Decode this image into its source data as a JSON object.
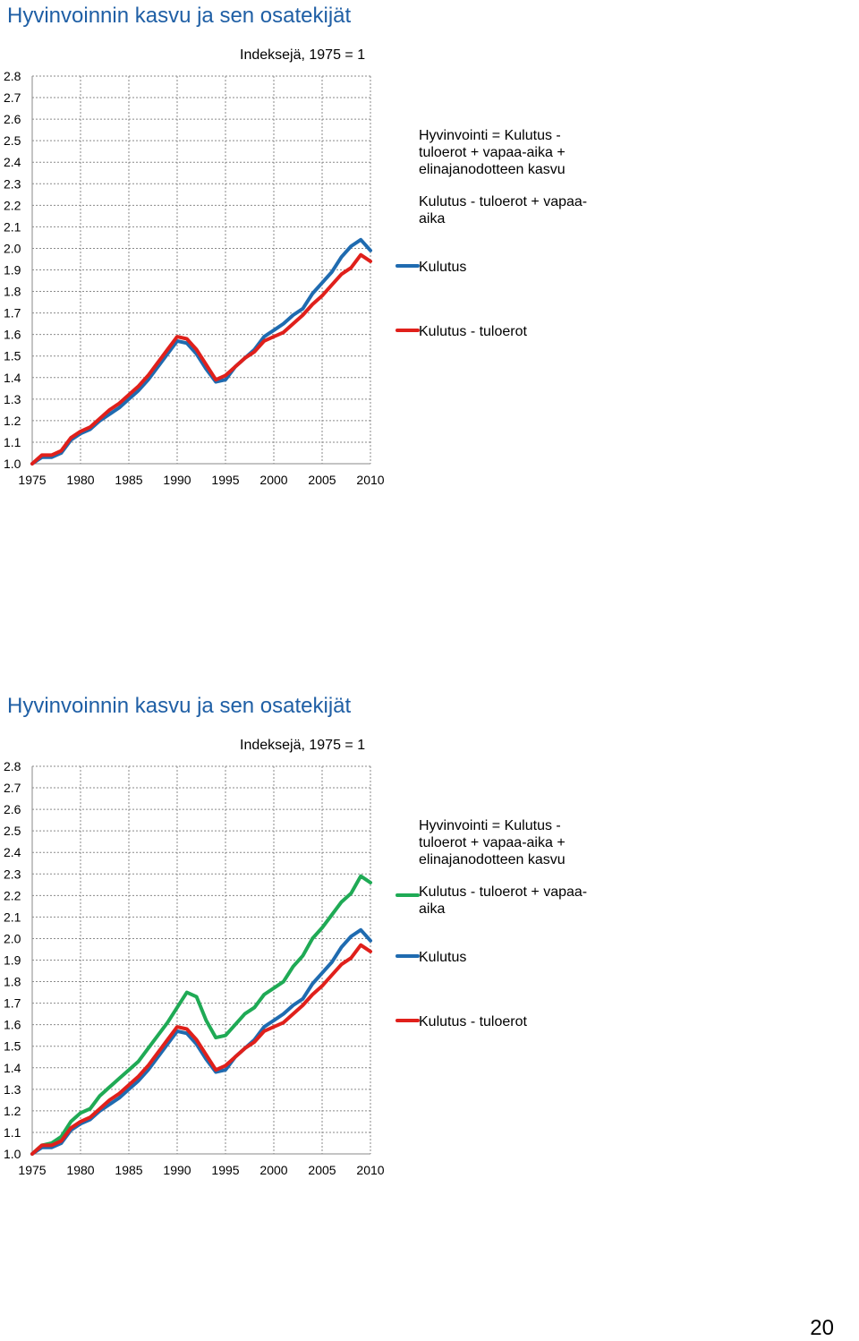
{
  "chart_data": [
    {
      "type": "line",
      "title": "Hyvinvoinnin kasvu ja sen osatekijät",
      "subtitle": "Indeksejä, 1975 = 1",
      "xlabel": "",
      "ylabel": "",
      "xlim": [
        1975,
        2010
      ],
      "ylim": [
        1.0,
        2.8
      ],
      "x_ticks": [
        "1975",
        "1980",
        "1985",
        "1990",
        "1995",
        "2000",
        "2005",
        "2010"
      ],
      "y_ticks": [
        "2.8",
        "2.7",
        "2.6",
        "2.5",
        "2.4",
        "2.3",
        "2.2",
        "2.1",
        "2.0",
        "1.9",
        "1.8",
        "1.7",
        "1.6",
        "1.5",
        "1.4",
        "1.3",
        "1.2",
        "1.1",
        "1.0"
      ],
      "grid": true,
      "x": [
        1975,
        1976,
        1977,
        1978,
        1979,
        1980,
        1981,
        1982,
        1983,
        1984,
        1985,
        1986,
        1987,
        1988,
        1989,
        1990,
        1991,
        1992,
        1993,
        1994,
        1995,
        1996,
        1997,
        1998,
        1999,
        2000,
        2001,
        2002,
        2003,
        2004,
        2005,
        2006,
        2007,
        2008,
        2009,
        2010
      ],
      "legend": [
        {
          "label": "Hyvinvointi = Kulutus - tuloerot + vapaa-aika + elinajanodotteen kasvu",
          "color": "",
          "marker": false
        },
        {
          "label": "Kulutus - tuloerot + vapaa-aika",
          "color": "",
          "marker": false
        },
        {
          "label": "Kulutus",
          "color": "#1f6bb0",
          "marker": true
        },
        {
          "label": "Kulutus - tuloerot",
          "color": "#e0201b",
          "marker": true
        }
      ],
      "series": [
        {
          "color": "#1f6bb0",
          "values": [
            1.0,
            1.03,
            1.03,
            1.05,
            1.11,
            1.14,
            1.16,
            1.2,
            1.23,
            1.26,
            1.3,
            1.34,
            1.39,
            1.45,
            1.51,
            1.57,
            1.56,
            1.51,
            1.44,
            1.38,
            1.39,
            1.45,
            1.49,
            1.53,
            1.59,
            1.62,
            1.65,
            1.69,
            1.72,
            1.79,
            1.84,
            1.89,
            1.96,
            2.01,
            2.04,
            1.99
          ]
        },
        {
          "color": "#e0201b",
          "values": [
            1.0,
            1.04,
            1.04,
            1.06,
            1.12,
            1.15,
            1.17,
            1.21,
            1.25,
            1.28,
            1.32,
            1.36,
            1.41,
            1.47,
            1.53,
            1.59,
            1.58,
            1.53,
            1.46,
            1.39,
            1.41,
            1.45,
            1.49,
            1.52,
            1.57,
            1.59,
            1.61,
            1.65,
            1.69,
            1.74,
            1.78,
            1.83,
            1.88,
            1.91,
            1.97,
            1.94
          ]
        }
      ]
    },
    {
      "type": "line",
      "title": "Hyvinvoinnin kasvu ja sen osatekijät",
      "subtitle": "Indeksejä, 1975 = 1",
      "xlabel": "",
      "ylabel": "",
      "xlim": [
        1975,
        2010
      ],
      "ylim": [
        1.0,
        2.8
      ],
      "x_ticks": [
        "1975",
        "1980",
        "1985",
        "1990",
        "1995",
        "2000",
        "2005",
        "2010"
      ],
      "y_ticks": [
        "2.8",
        "2.7",
        "2.6",
        "2.5",
        "2.4",
        "2.3",
        "2.2",
        "2.1",
        "2.0",
        "1.9",
        "1.8",
        "1.7",
        "1.6",
        "1.5",
        "1.4",
        "1.3",
        "1.2",
        "1.1",
        "1.0"
      ],
      "grid": true,
      "x": [
        1975,
        1976,
        1977,
        1978,
        1979,
        1980,
        1981,
        1982,
        1983,
        1984,
        1985,
        1986,
        1987,
        1988,
        1989,
        1990,
        1991,
        1992,
        1993,
        1994,
        1995,
        1996,
        1997,
        1998,
        1999,
        2000,
        2001,
        2002,
        2003,
        2004,
        2005,
        2006,
        2007,
        2008,
        2009,
        2010
      ],
      "legend": [
        {
          "label": "Hyvinvointi = Kulutus - tuloerot + vapaa-aika + elinajanodotteen kasvu",
          "color": "",
          "marker": false
        },
        {
          "label": "Kulutus - tuloerot + vapaa-aika",
          "color": "#1faa55",
          "marker": true
        },
        {
          "label": "Kulutus",
          "color": "#1f6bb0",
          "marker": true
        },
        {
          "label": "Kulutus - tuloerot",
          "color": "#e0201b",
          "marker": true
        }
      ],
      "series": [
        {
          "color": "#1faa55",
          "values": [
            1.0,
            1.04,
            1.05,
            1.08,
            1.15,
            1.19,
            1.21,
            1.27,
            1.31,
            1.35,
            1.39,
            1.43,
            1.49,
            1.55,
            1.61,
            1.68,
            1.75,
            1.73,
            1.62,
            1.54,
            1.55,
            1.6,
            1.65,
            1.68,
            1.74,
            1.77,
            1.8,
            1.87,
            1.92,
            2.0,
            2.05,
            2.11,
            2.17,
            2.21,
            2.29,
            2.26
          ]
        },
        {
          "color": "#1f6bb0",
          "values": [
            1.0,
            1.03,
            1.03,
            1.05,
            1.11,
            1.14,
            1.16,
            1.2,
            1.23,
            1.26,
            1.3,
            1.34,
            1.39,
            1.45,
            1.51,
            1.57,
            1.56,
            1.51,
            1.44,
            1.38,
            1.39,
            1.45,
            1.49,
            1.53,
            1.59,
            1.62,
            1.65,
            1.69,
            1.72,
            1.79,
            1.84,
            1.89,
            1.96,
            2.01,
            2.04,
            1.99
          ]
        },
        {
          "color": "#e0201b",
          "values": [
            1.0,
            1.04,
            1.04,
            1.06,
            1.12,
            1.15,
            1.17,
            1.21,
            1.25,
            1.28,
            1.32,
            1.36,
            1.41,
            1.47,
            1.53,
            1.59,
            1.58,
            1.53,
            1.46,
            1.39,
            1.41,
            1.45,
            1.49,
            1.52,
            1.57,
            1.59,
            1.61,
            1.65,
            1.69,
            1.74,
            1.78,
            1.83,
            1.88,
            1.91,
            1.97,
            1.94
          ]
        }
      ]
    }
  ],
  "page": {
    "number": "20"
  }
}
